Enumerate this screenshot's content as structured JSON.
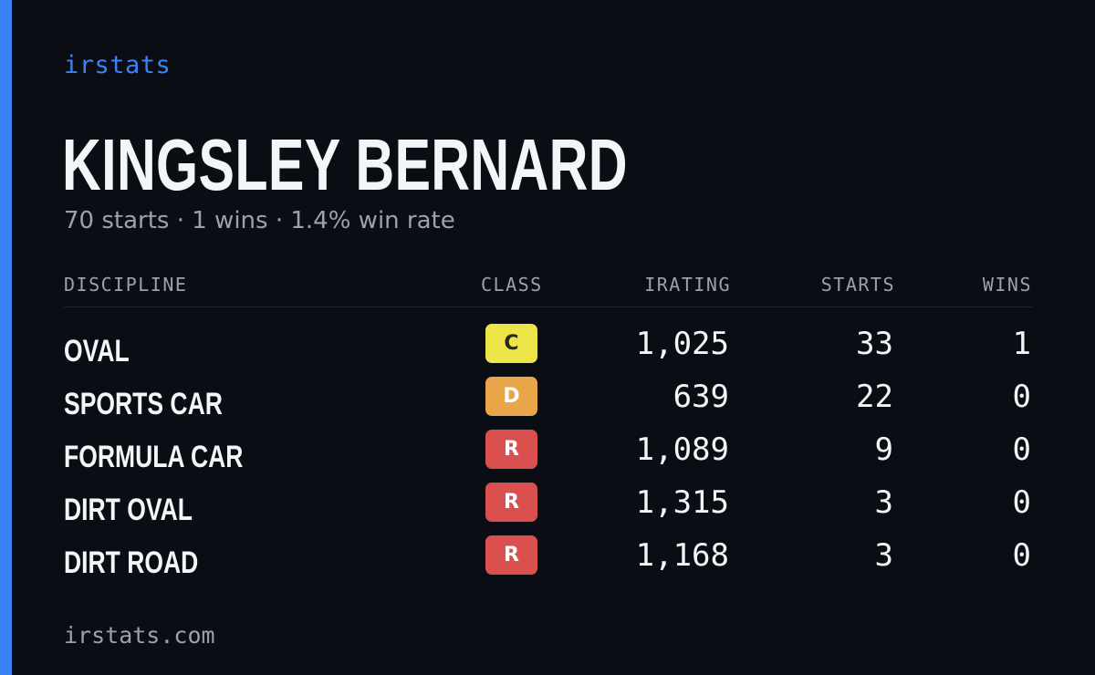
{
  "theme": {
    "accent": "#3b82f6",
    "background": "#0a0d14",
    "text_primary": "#f4f5f8",
    "text_muted": "#9ba1ad"
  },
  "brand": "irstats",
  "driver": {
    "name": "KINGSLEY BERNARD",
    "summary": "70 starts · 1 wins · 1.4% win rate"
  },
  "table": {
    "headers": {
      "discipline": "DISCIPLINE",
      "class": "CLASS",
      "irating": "IRATING",
      "starts": "STARTS",
      "wins": "WINS"
    },
    "rows": [
      {
        "discipline": "OVAL",
        "class": "C",
        "class_color": "#ede44a",
        "class_text_color": "#2a2a12",
        "irating": "1,025",
        "starts": "33",
        "wins": "1"
      },
      {
        "discipline": "SPORTS CAR",
        "class": "D",
        "class_color": "#eaa548",
        "class_text_color": "#ffffff",
        "irating": "639",
        "starts": "22",
        "wins": "0"
      },
      {
        "discipline": "FORMULA CAR",
        "class": "R",
        "class_color": "#d9504f",
        "class_text_color": "#ffffff",
        "irating": "1,089",
        "starts": "9",
        "wins": "0"
      },
      {
        "discipline": "DIRT OVAL",
        "class": "R",
        "class_color": "#d9504f",
        "class_text_color": "#ffffff",
        "irating": "1,315",
        "starts": "3",
        "wins": "0"
      },
      {
        "discipline": "DIRT ROAD",
        "class": "R",
        "class_color": "#d9504f",
        "class_text_color": "#ffffff",
        "irating": "1,168",
        "starts": "3",
        "wins": "0"
      }
    ]
  },
  "footer": "irstats.com"
}
